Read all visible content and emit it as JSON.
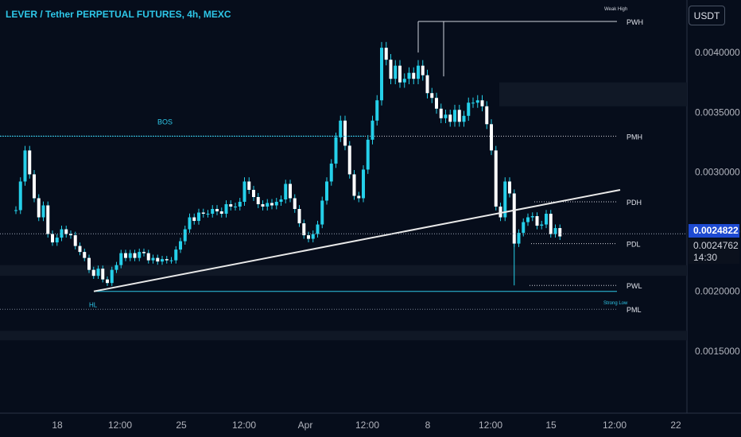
{
  "header": {
    "title": "LEVER / Tether PERPETUAL FUTURES, 4h, MEXC",
    "currency_button": "USDT"
  },
  "price_labels": {
    "last_price": "0.0024822",
    "alt_price": "0.0024762",
    "countdown": "14:30"
  },
  "colors": {
    "background": "#060d1b",
    "candle": "#25d0ea",
    "accent": "#2ec7e8",
    "trendline": "#e8e8e8",
    "last_price_badge": "#1e4ad1"
  },
  "chart_data": {
    "type": "candlestick",
    "title": "LEVER / Tether PERPETUAL FUTURES, 4h, MEXC",
    "currency": "USDT",
    "ylim": [
      0.00098,
      0.00444
    ],
    "y_ticks": [
      {
        "value": 0.004,
        "label": "0.0040000"
      },
      {
        "value": 0.0035,
        "label": "0.0035000"
      },
      {
        "value": 0.003,
        "label": "0.0030000"
      },
      {
        "value": 0.0025,
        "label": "0.0025000"
      },
      {
        "value": 0.002,
        "label": "0.0020000"
      },
      {
        "value": 0.0015,
        "label": "0.0015000"
      }
    ],
    "x_ticks": [
      "18",
      "12:00",
      "25",
      "12:00",
      "Apr",
      "12:00",
      "8",
      "12:00",
      "15",
      "12:00",
      "22"
    ],
    "grid": false,
    "levels": [
      {
        "label": "PWH",
        "price": 0.00426,
        "note": "Weak High"
      },
      {
        "label": "PMH",
        "price": 0.0033
      },
      {
        "label": "PDH",
        "price": 0.00275
      },
      {
        "label": "PDL",
        "price": 0.0024
      },
      {
        "label": "PWL",
        "price": 0.00205
      },
      {
        "label": "PML",
        "price": 0.00185,
        "note": "Strong Low"
      }
    ],
    "annotations": [
      {
        "label": "BOS",
        "price": 0.0033
      },
      {
        "label": "HL",
        "price": 0.002
      }
    ],
    "trendline": {
      "from_price": 0.002,
      "to_price": 0.00285
    },
    "zones": [
      {
        "from": 0.00355,
        "to": 0.00375
      },
      {
        "from": 0.00213,
        "to": 0.00222
      },
      {
        "from": 0.00159,
        "to": 0.00167
      }
    ],
    "candles_close": [
      0.00268,
      0.00292,
      0.00318,
      0.00298,
      0.00278,
      0.00262,
      0.00272,
      0.00248,
      0.00241,
      0.00245,
      0.00252,
      0.00248,
      0.00247,
      0.00238,
      0.00233,
      0.00228,
      0.00218,
      0.00213,
      0.00219,
      0.0021,
      0.00207,
      0.00218,
      0.00222,
      0.00232,
      0.00228,
      0.00232,
      0.00228,
      0.00233,
      0.00232,
      0.00226,
      0.00228,
      0.00225,
      0.00227,
      0.00226,
      0.00226,
      0.00235,
      0.00242,
      0.00252,
      0.00262,
      0.00259,
      0.00266,
      0.00265,
      0.00265,
      0.00269,
      0.00267,
      0.00265,
      0.00273,
      0.00271,
      0.00271,
      0.00275,
      0.00292,
      0.00285,
      0.00279,
      0.00273,
      0.00271,
      0.00274,
      0.00272,
      0.00275,
      0.00277,
      0.0029,
      0.00278,
      0.00269,
      0.00257,
      0.00247,
      0.00244,
      0.00248,
      0.00256,
      0.00276,
      0.00292,
      0.00307,
      0.00329,
      0.00343,
      0.00322,
      0.00298,
      0.0028,
      0.00278,
      0.00302,
      0.00327,
      0.00343,
      0.0036,
      0.00404,
      0.00394,
      0.00378,
      0.00389,
      0.00375,
      0.00378,
      0.00383,
      0.00378,
      0.00389,
      0.00381,
      0.00366,
      0.00362,
      0.00353,
      0.00345,
      0.00348,
      0.00342,
      0.00352,
      0.00342,
      0.00347,
      0.00358,
      0.00358,
      0.0036,
      0.00355,
      0.0034,
      0.00318,
      0.00271,
      0.00262,
      0.00292,
      0.00282,
      0.0024,
      0.00249,
      0.00258,
      0.00262,
      0.00263,
      0.00255,
      0.00256,
      0.00265,
      0.00248,
      0.00253,
      0.00246
    ],
    "last_price": 0.0024822
  }
}
